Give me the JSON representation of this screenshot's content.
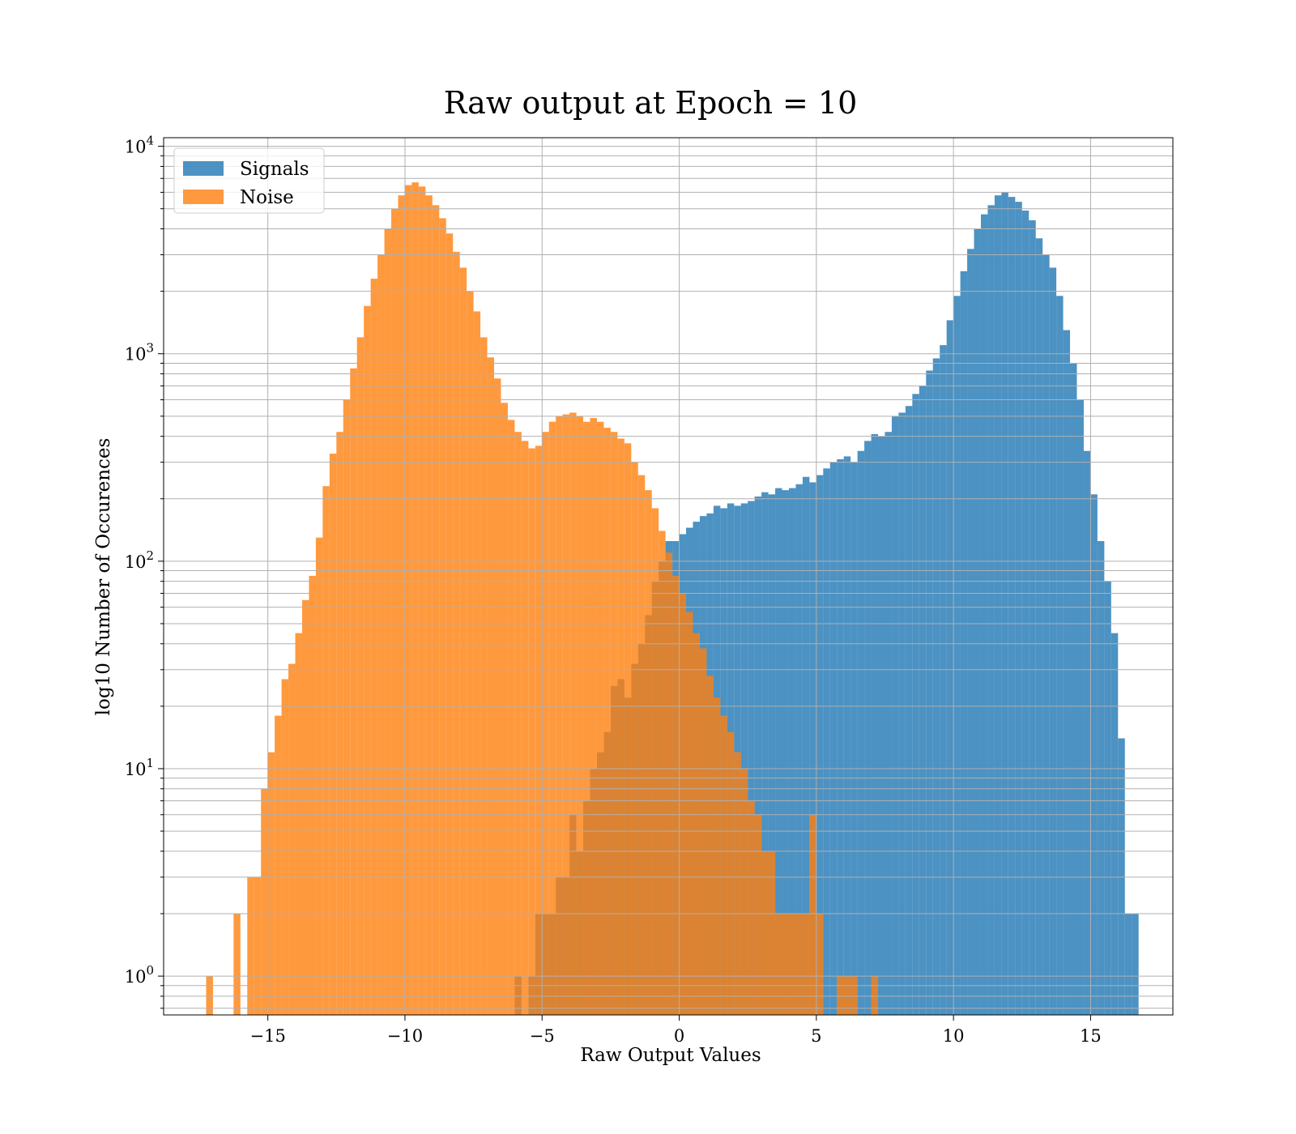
{
  "chart_data": {
    "type": "bar",
    "title": "Raw output at Epoch = 10",
    "xlabel": "Raw Output Values",
    "ylabel": "log10 Number of Occurences",
    "xlim": [
      -18.8,
      18.0
    ],
    "ylim": [
      0.65,
      11000
    ],
    "yscale": "log",
    "grid": true,
    "legend_position": "top-left",
    "x_ticks": [
      -15,
      -10,
      -5,
      0,
      5,
      10,
      15
    ],
    "x_tick_labels": [
      "−15",
      "−10",
      "−5",
      "0",
      "5",
      "10",
      "15"
    ],
    "y_ticks": [
      {
        "base": "10",
        "exp": "0",
        "value": 1
      },
      {
        "base": "10",
        "exp": "1",
        "value": 10
      },
      {
        "base": "10",
        "exp": "2",
        "value": 100
      },
      {
        "base": "10",
        "exp": "3",
        "value": 1000
      },
      {
        "base": "10",
        "exp": "4",
        "value": 10000
      }
    ],
    "series": [
      {
        "name": "Signals",
        "color": "#1f77b4",
        "alpha": 0.8,
        "bins": [
          [
            -6.0,
            -5.75,
            1
          ],
          [
            -5.5,
            -5.25,
            1
          ],
          [
            -5.25,
            -5.0,
            2
          ],
          [
            -5.0,
            -4.75,
            2
          ],
          [
            -4.75,
            -4.5,
            2
          ],
          [
            -4.5,
            -4.25,
            3
          ],
          [
            -4.25,
            -4.0,
            3
          ],
          [
            -4.0,
            -3.75,
            6
          ],
          [
            -3.75,
            -3.5,
            4
          ],
          [
            -3.5,
            -3.25,
            7
          ],
          [
            -3.25,
            -3.0,
            10
          ],
          [
            -3.0,
            -2.75,
            12
          ],
          [
            -2.75,
            -2.5,
            15
          ],
          [
            -2.5,
            -2.25,
            25
          ],
          [
            -2.25,
            -2.0,
            27
          ],
          [
            -2.0,
            -1.75,
            22
          ],
          [
            -1.75,
            -1.5,
            32
          ],
          [
            -1.5,
            -1.25,
            40
          ],
          [
            -1.25,
            -1.0,
            55
          ],
          [
            -1.0,
            -0.75,
            80
          ],
          [
            -0.75,
            -0.5,
            100
          ],
          [
            -0.5,
            -0.25,
            125
          ],
          [
            -0.25,
            0.0,
            125
          ],
          [
            0.0,
            0.25,
            135
          ],
          [
            0.25,
            0.5,
            145
          ],
          [
            0.5,
            0.75,
            155
          ],
          [
            0.75,
            1.0,
            165
          ],
          [
            1.0,
            1.25,
            170
          ],
          [
            1.25,
            1.5,
            185
          ],
          [
            1.5,
            1.75,
            180
          ],
          [
            1.75,
            2.0,
            190
          ],
          [
            2.0,
            2.25,
            185
          ],
          [
            2.25,
            2.5,
            190
          ],
          [
            2.5,
            2.75,
            195
          ],
          [
            2.75,
            3.0,
            205
          ],
          [
            3.0,
            3.25,
            215
          ],
          [
            3.25,
            3.5,
            210
          ],
          [
            3.5,
            3.75,
            225
          ],
          [
            3.75,
            4.0,
            220
          ],
          [
            4.0,
            4.25,
            225
          ],
          [
            4.25,
            4.5,
            235
          ],
          [
            4.5,
            4.75,
            255
          ],
          [
            4.75,
            5.0,
            240
          ],
          [
            5.0,
            5.25,
            260
          ],
          [
            5.25,
            5.5,
            280
          ],
          [
            5.5,
            5.75,
            300
          ],
          [
            5.75,
            6.0,
            310
          ],
          [
            6.0,
            6.25,
            320
          ],
          [
            6.25,
            6.5,
            300
          ],
          [
            6.5,
            6.75,
            340
          ],
          [
            6.75,
            7.0,
            380
          ],
          [
            7.0,
            7.25,
            410
          ],
          [
            7.25,
            7.5,
            400
          ],
          [
            7.5,
            7.75,
            420
          ],
          [
            7.75,
            8.0,
            500
          ],
          [
            8.0,
            8.25,
            520
          ],
          [
            8.25,
            8.5,
            560
          ],
          [
            8.5,
            8.75,
            640
          ],
          [
            8.75,
            9.0,
            700
          ],
          [
            9.0,
            9.25,
            830
          ],
          [
            9.25,
            9.5,
            950
          ],
          [
            9.5,
            9.75,
            1100
          ],
          [
            9.75,
            10.0,
            1450
          ],
          [
            10.0,
            10.25,
            1900
          ],
          [
            10.25,
            10.5,
            2500
          ],
          [
            10.5,
            10.75,
            3200
          ],
          [
            10.75,
            11.0,
            4000
          ],
          [
            11.0,
            11.25,
            4700
          ],
          [
            11.25,
            11.5,
            5200
          ],
          [
            11.5,
            11.75,
            5800
          ],
          [
            11.75,
            12.0,
            6000
          ],
          [
            12.0,
            12.25,
            5700
          ],
          [
            12.25,
            12.5,
            5400
          ],
          [
            12.5,
            12.75,
            4900
          ],
          [
            12.75,
            13.0,
            4400
          ],
          [
            13.0,
            13.25,
            3600
          ],
          [
            13.25,
            13.5,
            3000
          ],
          [
            13.5,
            13.75,
            2600
          ],
          [
            13.75,
            14.0,
            1900
          ],
          [
            14.0,
            14.25,
            1300
          ],
          [
            14.25,
            14.5,
            900
          ],
          [
            14.5,
            14.75,
            600
          ],
          [
            14.75,
            15.0,
            340
          ],
          [
            15.0,
            15.25,
            210
          ],
          [
            15.25,
            15.5,
            125
          ],
          [
            15.5,
            15.75,
            80
          ],
          [
            15.75,
            16.0,
            45
          ],
          [
            16.0,
            16.25,
            14
          ],
          [
            16.25,
            16.5,
            2
          ],
          [
            16.5,
            16.75,
            2
          ]
        ]
      },
      {
        "name": "Noise",
        "color": "#ff7f0e",
        "alpha": 0.8,
        "bins": [
          [
            -17.25,
            -17.0,
            1
          ],
          [
            -16.25,
            -16.0,
            2
          ],
          [
            -15.75,
            -15.5,
            3
          ],
          [
            -15.5,
            -15.25,
            3
          ],
          [
            -15.25,
            -15.0,
            8
          ],
          [
            -15.0,
            -14.75,
            12
          ],
          [
            -14.75,
            -14.5,
            18
          ],
          [
            -14.5,
            -14.25,
            27
          ],
          [
            -14.25,
            -14.0,
            32
          ],
          [
            -14.0,
            -13.75,
            45
          ],
          [
            -13.75,
            -13.5,
            65
          ],
          [
            -13.5,
            -13.25,
            85
          ],
          [
            -13.25,
            -13.0,
            130
          ],
          [
            -13.0,
            -12.75,
            230
          ],
          [
            -12.75,
            -12.5,
            330
          ],
          [
            -12.5,
            -12.25,
            420
          ],
          [
            -12.25,
            -12.0,
            600
          ],
          [
            -12.0,
            -11.75,
            850
          ],
          [
            -11.75,
            -11.5,
            1200
          ],
          [
            -11.5,
            -11.25,
            1700
          ],
          [
            -11.25,
            -11.0,
            2300
          ],
          [
            -11.0,
            -10.75,
            3000
          ],
          [
            -10.75,
            -10.5,
            4000
          ],
          [
            -10.5,
            -10.25,
            5000
          ],
          [
            -10.25,
            -10.0,
            5800
          ],
          [
            -10.0,
            -9.75,
            6500
          ],
          [
            -9.75,
            -9.5,
            6700
          ],
          [
            -9.5,
            -9.25,
            6400
          ],
          [
            -9.25,
            -9.0,
            5800
          ],
          [
            -9.0,
            -8.75,
            5200
          ],
          [
            -8.75,
            -8.5,
            4500
          ],
          [
            -8.5,
            -8.25,
            3800
          ],
          [
            -8.25,
            -8.0,
            3100
          ],
          [
            -8.0,
            -7.75,
            2600
          ],
          [
            -7.75,
            -7.5,
            2000
          ],
          [
            -7.5,
            -7.25,
            1600
          ],
          [
            -7.25,
            -7.0,
            1200
          ],
          [
            -7.0,
            -6.75,
            960
          ],
          [
            -6.75,
            -6.5,
            760
          ],
          [
            -6.5,
            -6.25,
            580
          ],
          [
            -6.25,
            -6.0,
            480
          ],
          [
            -6.0,
            -5.75,
            420
          ],
          [
            -5.75,
            -5.5,
            380
          ],
          [
            -5.5,
            -5.25,
            350
          ],
          [
            -5.25,
            -5.0,
            360
          ],
          [
            -5.0,
            -4.75,
            420
          ],
          [
            -4.75,
            -4.5,
            470
          ],
          [
            -4.5,
            -4.25,
            500
          ],
          [
            -4.25,
            -4.0,
            510
          ],
          [
            -4.0,
            -3.75,
            520
          ],
          [
            -3.75,
            -3.5,
            500
          ],
          [
            -3.5,
            -3.25,
            470
          ],
          [
            -3.25,
            -3.0,
            490
          ],
          [
            -3.0,
            -2.75,
            470
          ],
          [
            -2.75,
            -2.5,
            440
          ],
          [
            -2.5,
            -2.25,
            420
          ],
          [
            -2.25,
            -2.0,
            390
          ],
          [
            -2.0,
            -1.75,
            370
          ],
          [
            -1.75,
            -1.5,
            300
          ],
          [
            -1.5,
            -1.25,
            260
          ],
          [
            -1.25,
            -1.0,
            220
          ],
          [
            -1.0,
            -0.75,
            180
          ],
          [
            -0.75,
            -0.5,
            140
          ],
          [
            -0.5,
            -0.25,
            110
          ],
          [
            -0.25,
            0.0,
            85
          ],
          [
            0.0,
            0.25,
            70
          ],
          [
            0.25,
            0.5,
            57
          ],
          [
            0.5,
            0.75,
            45
          ],
          [
            0.75,
            1.0,
            38
          ],
          [
            1.0,
            1.25,
            28
          ],
          [
            1.25,
            1.5,
            22
          ],
          [
            1.5,
            1.75,
            18
          ],
          [
            1.75,
            2.0,
            15
          ],
          [
            2.0,
            2.25,
            12
          ],
          [
            2.25,
            2.5,
            10
          ],
          [
            2.5,
            2.75,
            7
          ],
          [
            2.75,
            3.0,
            6
          ],
          [
            3.0,
            3.25,
            4
          ],
          [
            3.25,
            3.5,
            4
          ],
          [
            3.5,
            3.75,
            2
          ],
          [
            3.75,
            4.0,
            2
          ],
          [
            4.0,
            4.25,
            2
          ],
          [
            4.25,
            4.5,
            2
          ],
          [
            4.5,
            4.75,
            2
          ],
          [
            4.75,
            5.0,
            6
          ],
          [
            5.0,
            5.25,
            2
          ],
          [
            5.75,
            6.0,
            1
          ],
          [
            6.0,
            6.25,
            1
          ],
          [
            6.25,
            6.5,
            1
          ],
          [
            7.0,
            7.25,
            1
          ]
        ]
      }
    ]
  }
}
